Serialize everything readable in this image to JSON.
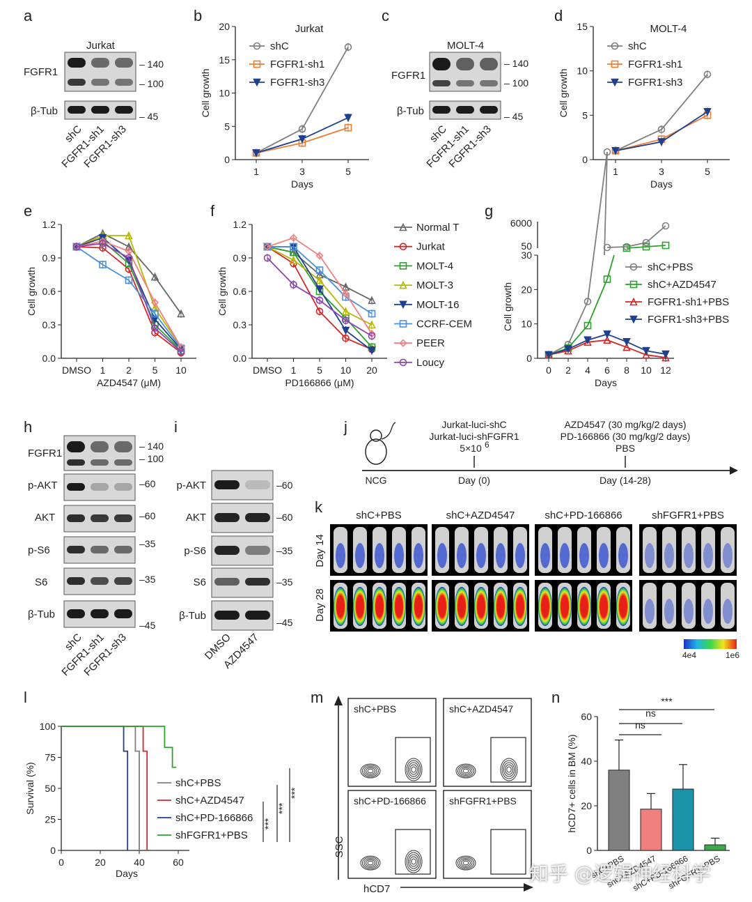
{
  "panel_letters": [
    "a",
    "b",
    "c",
    "d",
    "e",
    "f",
    "g",
    "h",
    "i",
    "j",
    "k",
    "l",
    "m",
    "n"
  ],
  "watermark": "知乎 @逻辑神经科学",
  "blots": {
    "a": {
      "cell": "Jurkat",
      "rows": [
        "FGFR1",
        "β-Tub"
      ],
      "kda": [
        "140",
        "100",
        "45"
      ],
      "lanes": [
        "shC",
        "FGFR1-sh1",
        "FGFR1-sh3"
      ]
    },
    "c": {
      "cell": "MOLT-4",
      "rows": [
        "FGFR1",
        "β-Tub"
      ],
      "kda": [
        "140",
        "100",
        "45"
      ],
      "lanes": [
        "shC",
        "FGFR1-sh1",
        "FGFR1-sh3"
      ]
    },
    "h": {
      "rows": [
        "FGFR1",
        "p-AKT",
        "AKT",
        "p-S6",
        "S6",
        "β-Tub"
      ],
      "kda": [
        "140",
        "100",
        "60",
        "60",
        "35",
        "35",
        "45"
      ],
      "lanes": [
        "shC",
        "FGFR1-sh1",
        "FGFR1-sh3"
      ]
    },
    "i": {
      "rows": [
        "p-AKT",
        "AKT",
        "p-S6",
        "S6",
        "β-Tub"
      ],
      "kda": [
        "60",
        "60",
        "35",
        "35",
        "45"
      ],
      "lanes": [
        "DMSO",
        "AZD4547"
      ]
    }
  },
  "chart_data": [
    {
      "panel": "b",
      "type": "line",
      "title": "Jurkat",
      "xlabel": "Days",
      "ylabel": "Cell growth",
      "x": [
        1,
        3,
        5
      ],
      "ylim": [
        0,
        20
      ],
      "yticks": [
        "0",
        "5",
        "10",
        "15",
        "20"
      ],
      "series": [
        {
          "name": "shC",
          "values": [
            1,
            4.6,
            16.9
          ],
          "color": "#7f7f7f"
        },
        {
          "name": "FGFR1-sh1",
          "values": [
            1,
            2.5,
            4.8
          ],
          "color": "#ec7d31"
        },
        {
          "name": "FGFR1-sh3",
          "values": [
            1,
            3.1,
            6.3
          ],
          "color": "#1f3f8f"
        }
      ]
    },
    {
      "panel": "d",
      "type": "line",
      "title": "MOLT-4",
      "xlabel": "Days",
      "ylabel": "Cell growth",
      "x": [
        1,
        3,
        5
      ],
      "ylim": [
        0,
        15
      ],
      "yticks": [
        "0",
        "5",
        "10",
        "15"
      ],
      "series": [
        {
          "name": "shC",
          "values": [
            1,
            3.4,
            9.6
          ],
          "color": "#7f7f7f"
        },
        {
          "name": "FGFR1-sh1",
          "values": [
            1,
            2.3,
            5.0
          ],
          "color": "#ec7d31"
        },
        {
          "name": "FGFR1-sh3",
          "values": [
            1,
            2.0,
            5.4
          ],
          "color": "#1f3f8f"
        }
      ]
    },
    {
      "panel": "e",
      "type": "line",
      "xlabel": "AZD4547 (μM)",
      "ylabel": "Cell growth",
      "categories": [
        "DMSO",
        "1",
        "2",
        "5",
        "10"
      ],
      "ylim": [
        0,
        1.2
      ],
      "yticks": [
        "0.0",
        "0.3",
        "0.6",
        "0.9",
        "1.2"
      ],
      "series": [
        {
          "name": "Normal T",
          "values": [
            1.0,
            1.12,
            1.0,
            0.73,
            0.4
          ]
        },
        {
          "name": "Jurkat",
          "values": [
            1.0,
            0.99,
            0.8,
            0.23,
            0.05
          ]
        },
        {
          "name": "MOLT-4",
          "values": [
            1.0,
            1.05,
            0.85,
            0.3,
            0.07
          ]
        },
        {
          "name": "MOLT-3",
          "values": [
            1.0,
            1.1,
            1.1,
            0.45,
            0.1
          ]
        },
        {
          "name": "MOLT-16",
          "values": [
            1.0,
            1.08,
            0.88,
            0.35,
            0.08
          ]
        },
        {
          "name": "CCRF-CEM",
          "values": [
            1.0,
            0.84,
            0.7,
            0.4,
            0.09
          ]
        },
        {
          "name": "PEER",
          "values": [
            1.0,
            1.05,
            0.96,
            0.5,
            0.1
          ]
        },
        {
          "name": "Loucy",
          "values": [
            1.0,
            1.03,
            0.9,
            0.27,
            0.06
          ]
        }
      ]
    },
    {
      "panel": "f",
      "type": "line",
      "xlabel": "PD166866 (μM)",
      "ylabel": "Cell growth",
      "categories": [
        "DMSO",
        "1",
        "5",
        "10",
        "20"
      ],
      "ylim": [
        0,
        1.2
      ],
      "yticks": [
        "0.0",
        "0.3",
        "0.6",
        "0.9",
        "1.2"
      ],
      "series": [
        {
          "name": "Normal T",
          "values": [
            1.0,
            0.95,
            0.75,
            0.64,
            0.52
          ]
        },
        {
          "name": "Jurkat",
          "values": [
            1.0,
            0.85,
            0.42,
            0.18,
            0.08
          ]
        },
        {
          "name": "MOLT-4",
          "values": [
            1.0,
            0.95,
            0.6,
            0.36,
            0.1
          ]
        },
        {
          "name": "MOLT-3",
          "values": [
            1.0,
            0.88,
            0.7,
            0.42,
            0.3
          ]
        },
        {
          "name": "MOLT-16",
          "values": [
            1.0,
            1.0,
            0.62,
            0.25,
            0.07
          ]
        },
        {
          "name": "CCRF-CEM",
          "values": [
            1.0,
            1.0,
            0.79,
            0.55,
            0.4
          ]
        },
        {
          "name": "PEER",
          "values": [
            1.0,
            1.08,
            0.92,
            0.58,
            0.22
          ]
        },
        {
          "name": "Loucy",
          "values": [
            0.9,
            0.66,
            0.52,
            0.34,
            0.2
          ]
        }
      ]
    },
    {
      "panel": "g",
      "type": "line",
      "xlabel": "Days",
      "ylabel": "Cell growth",
      "x": [
        0,
        2,
        4,
        6,
        8,
        10,
        12
      ],
      "yticks": [
        "0",
        "10",
        "20",
        "30"
      ],
      "break_ticks": [
        "50",
        "6000"
      ],
      "series": [
        {
          "name": "shC+PBS",
          "values": [
            1,
            4,
            16.5,
            60,
            "",
            "",
            ""
          ],
          "color": "#7f7f7f"
        },
        {
          "name": "shC+AZD4547",
          "values": [
            1,
            3,
            9.5,
            23,
            "",
            "",
            ""
          ],
          "color": "#2ca02c"
        },
        {
          "name": "FGFR1-sh1+PBS",
          "values": [
            1,
            2.2,
            4.7,
            5.3,
            3.2,
            1,
            0.2
          ],
          "color": "#d62728"
        },
        {
          "name": "FGFR1-sh3+PBS",
          "values": [
            1,
            2.7,
            5.3,
            7,
            4.8,
            2.2,
            1.2
          ],
          "color": "#1f3f8f"
        }
      ]
    },
    {
      "panel": "l",
      "type": "line",
      "xlabel": "Days",
      "ylabel": "Survival (%)",
      "xticks": [
        "0",
        "20",
        "40",
        "60"
      ],
      "yticks": [
        "0",
        "25",
        "50",
        "75",
        "100"
      ],
      "series": [
        {
          "name": "shC+PBS",
          "color": "#7f7f7f"
        },
        {
          "name": "shC+AZD4547",
          "color": "#d62728"
        },
        {
          "name": "shC+PD-166866",
          "color": "#1f3f8f"
        },
        {
          "name": "shFGFR1+PBS",
          "color": "#2ca02c"
        }
      ],
      "annotations": [
        "***",
        "***",
        "***"
      ]
    },
    {
      "panel": "n",
      "type": "bar",
      "ylabel": "hCD7+ cells in BM (%)",
      "categories": [
        "shC+PBS",
        "shC+AZD4547",
        "shC+PD-166866",
        "shFGFR1+PBS"
      ],
      "values": [
        36,
        18.5,
        27.5,
        2.5
      ],
      "errors": [
        13.5,
        7,
        11,
        3
      ],
      "ylim": [
        0,
        60
      ],
      "yticks": [
        "0",
        "20",
        "40",
        "60"
      ],
      "colors": [
        "#808080",
        "#f08080",
        "#1b93a8",
        "#3aa84b"
      ],
      "annotations": [
        "ns",
        "ns",
        "***"
      ]
    }
  ],
  "legend_ef": [
    "Normal T",
    "Jurkat",
    "MOLT-4",
    "MOLT-3",
    "MOLT-16",
    "CCRF-CEM",
    "PEER",
    "Loucy"
  ],
  "legend_colors": [
    "#666666",
    "#d62728",
    "#2ca02c",
    "#b5b800",
    "#1f3f8f",
    "#4a90d9",
    "#f08080",
    "#8e44ad"
  ],
  "schematic_j": {
    "mouse": "NCG",
    "day0": "Day (0)",
    "day14": "Day (14-28)",
    "cells1": "Jurkat-luci-shC",
    "cells2": "Jurkat-luci-shFGFR1",
    "dose": "5×10",
    "dose_exp": "6",
    "drug1": "AZD4547 (30 mg/kg/2 days)",
    "drug2": "PD-166866 (30 mg/kg/2 days)",
    "drug3": "PBS"
  },
  "imaging_k": {
    "groups": [
      "shC+PBS",
      "shC+AZD4547",
      "shC+PD-166866",
      "shFGFR1+PBS"
    ],
    "rows": [
      "Day 14",
      "Day 28"
    ],
    "scale_min": "4e4",
    "scale_max": "1e6"
  },
  "flow_m": {
    "gates": [
      "shC+PBS",
      "shC+AZD4547",
      "shC+PD-166866",
      "shFGFR1+PBS"
    ],
    "xlabel": "hCD7",
    "ylabel": "SSC"
  }
}
